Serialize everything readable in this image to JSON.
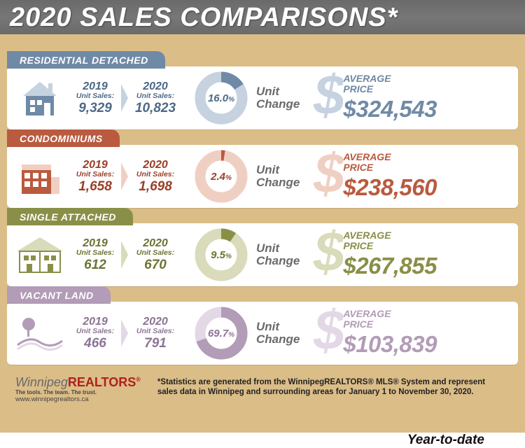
{
  "header": {
    "title": "2020 SALES COMPARISONS*",
    "ytd": "Year-to-date"
  },
  "colors": {
    "background": "#dbbd88",
    "header_bar": "#707070",
    "unit_change_text": "#6a6a6a"
  },
  "rows": [
    {
      "key": "residential",
      "label": "RESIDENTIAL DETACHED",
      "color_primary": "#6f8aa6",
      "color_light": "#c6d2df",
      "color_deep": "#4d6a87",
      "icon": "house",
      "y2019_label": "2019",
      "y2019_sub": "Unit Sales:",
      "y2019_val": "9,329",
      "y2020_label": "2020",
      "y2020_sub": "Unit Sales:",
      "y2020_val": "10,823",
      "pct_value": 16.0,
      "pct_label": "16.0",
      "unit_change": "Unit\nChange",
      "avg_label": "AVERAGE\nPRICE",
      "price": "$324,543"
    },
    {
      "key": "condos",
      "label": "CONDOMINIUMS",
      "color_primary": "#ba5a3f",
      "color_light": "#f0cfc3",
      "color_deep": "#9a3f28",
      "icon": "condo",
      "y2019_label": "2019",
      "y2019_sub": "Unit Sales:",
      "y2019_val": "1,658",
      "y2020_label": "2020",
      "y2020_sub": "Unit Sales:",
      "y2020_val": "1,698",
      "pct_value": 2.4,
      "pct_label": "2.4",
      "unit_change": "Unit\nChange",
      "avg_label": "AVERAGE\nPRICE",
      "price": "$238,560"
    },
    {
      "key": "single_attached",
      "label": "SINGLE ATTACHED",
      "color_primary": "#8a8f48",
      "color_light": "#d9dbba",
      "color_deep": "#6e7334",
      "icon": "duplex",
      "y2019_label": "2019",
      "y2019_sub": "Unit Sales:",
      "y2019_val": "612",
      "y2020_label": "2020",
      "y2020_sub": "Unit Sales:",
      "y2020_val": "670",
      "pct_value": 9.5,
      "pct_label": "9.5",
      "unit_change": "Unit\nChange",
      "avg_label": "AVERAGE\nPRICE",
      "price": "$267,855"
    },
    {
      "key": "vacant_land",
      "label": "VACANT LAND",
      "color_primary": "#b29cb7",
      "color_light": "#e3d8e6",
      "color_deep": "#8d7494",
      "icon": "land",
      "y2019_label": "2019",
      "y2019_sub": "Unit Sales:",
      "y2019_val": "466",
      "y2020_label": "2020",
      "y2020_sub": "Unit Sales:",
      "y2020_val": "791",
      "pct_value": 69.7,
      "pct_label": "69.7",
      "unit_change": "Unit\nChange",
      "avg_label": "AVERAGE\nPRICE",
      "price": "$103,839"
    }
  ],
  "logo": {
    "brand_a": "Winnipeg",
    "brand_b": "REALTORS",
    "reg": "®",
    "tag": "The tools. The team. The trust.",
    "url": "www.winnipegrealtors.ca"
  },
  "footnote": "*Statistics are generated from the WinnipegREALTORS® MLS® System and represent sales data in Winnipeg and surrounding areas for January 1 to November 30, 2020."
}
